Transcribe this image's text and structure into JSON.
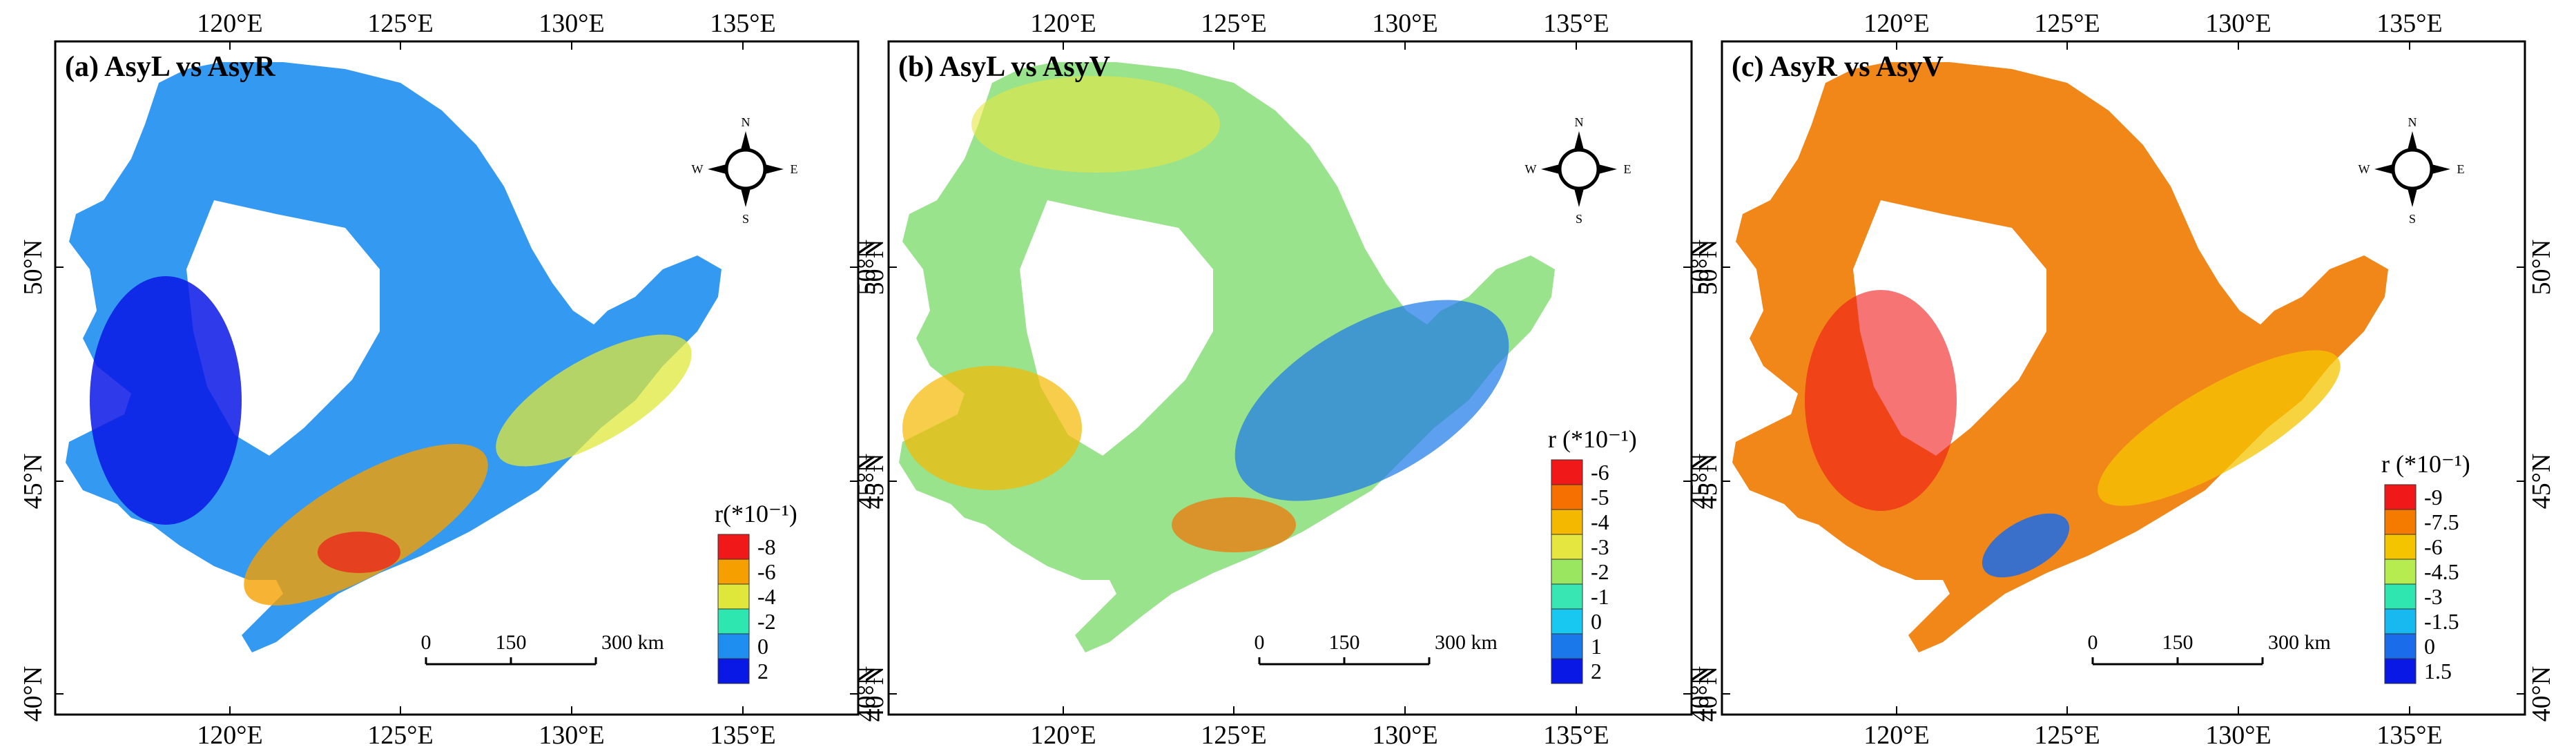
{
  "figure": {
    "lon_ticks": [
      "120°E",
      "125°E",
      "130°E",
      "135°E"
    ],
    "lat_ticks": [
      "50°N",
      "45°N",
      "40°N"
    ],
    "compass_labels": {
      "n": "N",
      "s": "S",
      "e": "E",
      "w": "W"
    },
    "scalebar_labels": [
      "0",
      "150",
      "300 km"
    ]
  },
  "panels": [
    {
      "title": "(a) AsyL vs AsyR",
      "legend_title": "r(*10⁻¹)",
      "legend_values": [
        "-8",
        "-6",
        "-4",
        "-2",
        "0",
        "2"
      ],
      "legend_colors": [
        "#f01818",
        "#f5a000",
        "#dfe83a",
        "#2ee6b0",
        "#1e8ef0",
        "#0a18e6"
      ]
    },
    {
      "title": "(b) AsyL vs AsyV",
      "legend_title": "r (*10⁻¹)",
      "legend_values": [
        "-6",
        "-5",
        "-4",
        "-3",
        "-2",
        "-1",
        "0",
        "1",
        "2"
      ],
      "legend_colors": [
        "#f01818",
        "#f57000",
        "#f5b800",
        "#e6e640",
        "#9ae660",
        "#38e6b4",
        "#18c8f0",
        "#1a78ea",
        "#0a18e6"
      ]
    },
    {
      "title": "(c) AsyR vs AsyV",
      "legend_title": "r (*10⁻¹)",
      "legend_values": [
        "-9",
        "-7.5",
        "-6",
        "-4.5",
        "-3",
        "-1.5",
        "0",
        "1.5"
      ],
      "legend_colors": [
        "#f01818",
        "#f57a00",
        "#f5c400",
        "#b6ec50",
        "#30e6b0",
        "#18b8f0",
        "#1a6cea",
        "#0a18e6"
      ]
    }
  ]
}
